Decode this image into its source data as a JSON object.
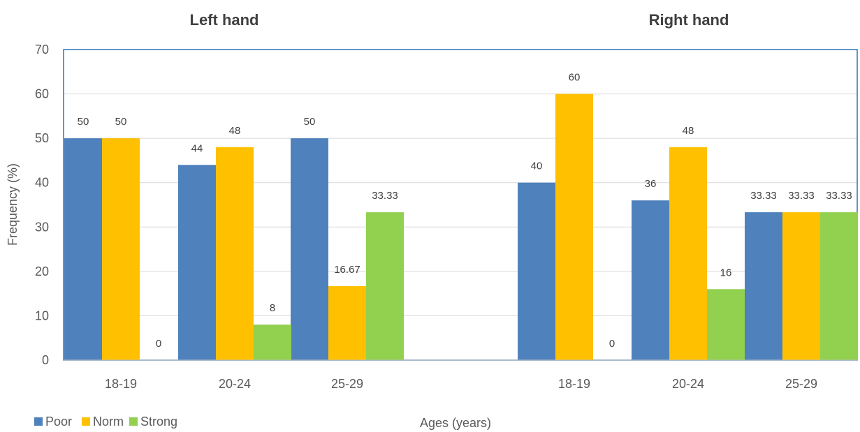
{
  "chart_data": {
    "type": "bar",
    "group_titles": [
      "Left hand",
      "Right hand"
    ],
    "categories": [
      "18-19",
      "20-24",
      "25-29",
      "18-19",
      "20-24",
      "25-29"
    ],
    "series": [
      {
        "name": "Poor",
        "color": "#4F81BD",
        "values": [
          50,
          44,
          50,
          40,
          36,
          33.33
        ],
        "labels": [
          "50",
          "44",
          "50",
          "40",
          "36",
          "33.33"
        ]
      },
      {
        "name": "Norm",
        "color": "#FFC000",
        "values": [
          50,
          48,
          16.67,
          60,
          48,
          33.33
        ],
        "labels": [
          "50",
          "48",
          "16.67",
          "60",
          "48",
          "33.33"
        ]
      },
      {
        "name": "Strong",
        "color": "#92D050",
        "values": [
          0,
          8,
          33.33,
          0,
          16,
          33.33
        ],
        "labels": [
          "0",
          "8",
          "33.33",
          "0",
          "16",
          "33.33"
        ]
      }
    ],
    "xlabel": "Ages (years)",
    "ylabel": "Frequency (%)",
    "ylim": [
      0,
      70
    ],
    "yticks": [
      "0",
      "10",
      "20",
      "30",
      "40",
      "50",
      "60",
      "70"
    ],
    "grid": true,
    "legend_position": "bottom-left"
  }
}
